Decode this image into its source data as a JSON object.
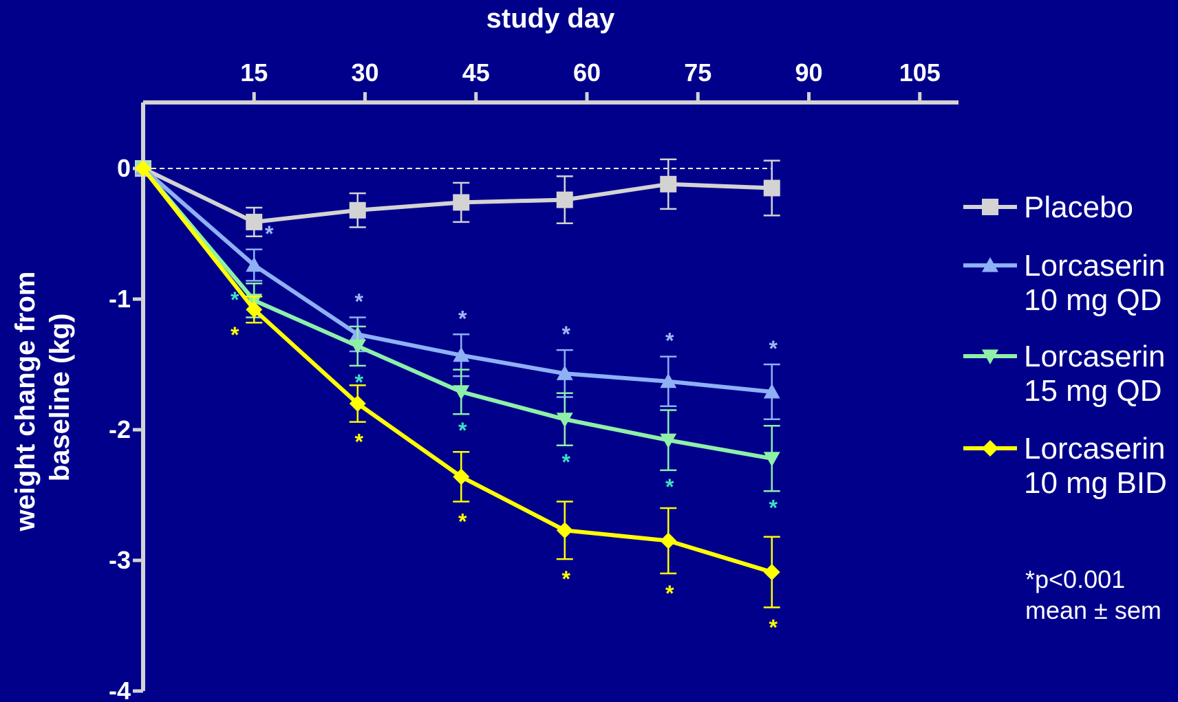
{
  "chart_data": {
    "type": "line",
    "xlabel": "study day",
    "ylabel_lines": [
      "weight change from",
      "baseline (kg)"
    ],
    "x_ticks": [
      15,
      30,
      45,
      60,
      75,
      90,
      105
    ],
    "y_ticks": [
      0,
      -1,
      -2,
      -3,
      -4
    ],
    "xlim": [
      0,
      110
    ],
    "ylim": [
      -4,
      0.5
    ],
    "grid": false,
    "reference_line": 0,
    "legend_position": "right",
    "series": [
      {
        "name": "Placebo",
        "color": "#D3D3D3",
        "marker": "square",
        "x": [
          0,
          15,
          29,
          43,
          57,
          71,
          85
        ],
        "y": [
          0,
          -0.41,
          -0.32,
          -0.26,
          -0.24,
          -0.12,
          -0.15
        ],
        "err": [
          0,
          0.11,
          0.13,
          0.15,
          0.18,
          0.19,
          0.21
        ],
        "stars": [
          false,
          false,
          false,
          false,
          false,
          false,
          false
        ]
      },
      {
        "name_lines": [
          "Lorcaserin",
          "10 mg QD"
        ],
        "color": "#8EB0F5",
        "marker": "triangle-up",
        "x": [
          0,
          15,
          29,
          43,
          57,
          71,
          85
        ],
        "y": [
          0,
          -0.74,
          -1.27,
          -1.43,
          -1.57,
          -1.63,
          -1.71
        ],
        "err": [
          0,
          0.12,
          0.13,
          0.16,
          0.18,
          0.19,
          0.21
        ],
        "stars": [
          false,
          true,
          true,
          true,
          true,
          true,
          true
        ]
      },
      {
        "name_lines": [
          "Lorcaserin",
          "15 mg QD"
        ],
        "color": "#8EF0A8",
        "marker": "triangle-down",
        "x": [
          0,
          15,
          29,
          43,
          57,
          71,
          85
        ],
        "y": [
          0,
          -1.01,
          -1.36,
          -1.71,
          -1.92,
          -2.08,
          -2.22
        ],
        "err": [
          0,
          0.13,
          0.15,
          0.17,
          0.2,
          0.23,
          0.25
        ],
        "stars": [
          false,
          true,
          true,
          true,
          true,
          true,
          true
        ]
      },
      {
        "name_lines": [
          "Lorcaserin",
          "10 mg BID"
        ],
        "color": "#FFFF00",
        "marker": "diamond",
        "x": [
          0,
          15,
          29,
          43,
          57,
          71,
          85
        ],
        "y": [
          0,
          -1.08,
          -1.8,
          -2.36,
          -2.77,
          -2.85,
          -3.09
        ],
        "err": [
          0,
          0.1,
          0.14,
          0.19,
          0.22,
          0.25,
          0.27
        ],
        "stars": [
          false,
          true,
          true,
          true,
          true,
          true,
          true
        ]
      }
    ],
    "star_colors": [
      "#D3D3D3",
      "#A0B8F5",
      "#40E0C0",
      "#FFFF00"
    ],
    "star_symbol": "*",
    "annotation": [
      "*p<0.001",
      "mean ± sem"
    ]
  }
}
